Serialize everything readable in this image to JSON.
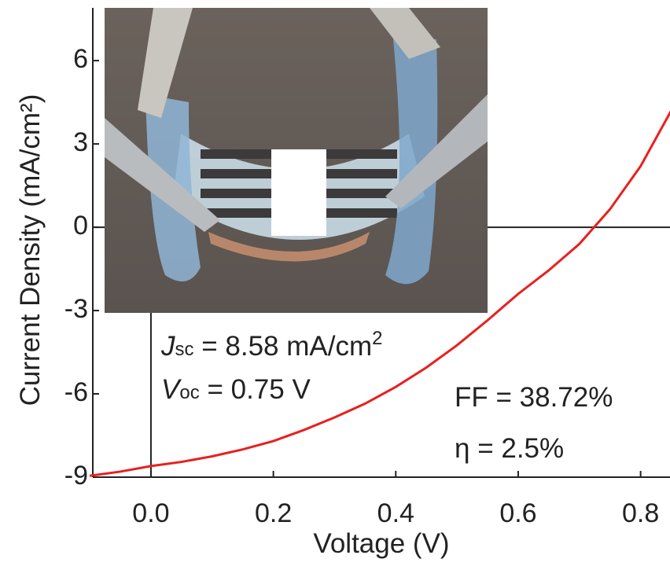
{
  "chart_data": {
    "type": "line",
    "x_label": "Voltage (V)",
    "y_label": "Current Density (mA/cm²)",
    "x": [
      -0.1,
      -0.05,
      0,
      0.05,
      0.1,
      0.15,
      0.2,
      0.25,
      0.3,
      0.35,
      0.4,
      0.45,
      0.5,
      0.55,
      0.6,
      0.65,
      0.7,
      0.75,
      0.8,
      0.85
    ],
    "values": [
      -8.95,
      -8.8,
      -8.6,
      -8.45,
      -8.25,
      -8.0,
      -7.7,
      -7.3,
      -6.85,
      -6.35,
      -5.75,
      -5.05,
      -4.25,
      -3.35,
      -2.4,
      -1.55,
      -0.6,
      0.65,
      2.2,
      4.2
    ],
    "color": "#e8201e",
    "xlim": [
      -0.095,
      0.848
    ],
    "ylim": [
      -9,
      7.9
    ],
    "xticks": [
      {
        "value": 0,
        "label": "0.0"
      },
      0.2,
      0.4,
      0.6,
      0.8
    ],
    "yticks": [
      -9,
      -6,
      -3,
      0,
      3,
      6
    ],
    "annotations": [
      {
        "parts": [
          "J",
          "sc",
          " = 8.58 mA/cm",
          "2"
        ]
      },
      {
        "parts": [
          "V",
          "oc",
          " = 0.75 V"
        ]
      },
      {
        "parts": [
          "FF = 38.72%"
        ]
      },
      {
        "parts": [
          "η = 2.5%"
        ]
      }
    ]
  }
}
